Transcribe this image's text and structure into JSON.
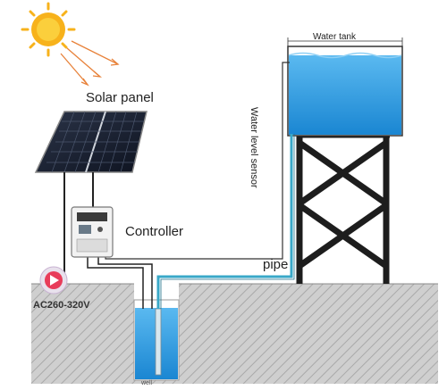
{
  "labels": {
    "solar_panel": "Solar panel",
    "controller": "Controller",
    "pipe": "pipe",
    "water_tank": "Water tank",
    "water_level_sensor": "Water level sensor",
    "voltage": "AC260-320V",
    "well": "well"
  },
  "colors": {
    "sun": "#f7b21b",
    "rays": "#e8823a",
    "panel": "#1c2333",
    "water": "#2f9be0",
    "pipe": "#39a8c8",
    "ground": "#c8c8c8",
    "tower": "#1d1d1d",
    "pump_marker": "#e83c5a"
  }
}
